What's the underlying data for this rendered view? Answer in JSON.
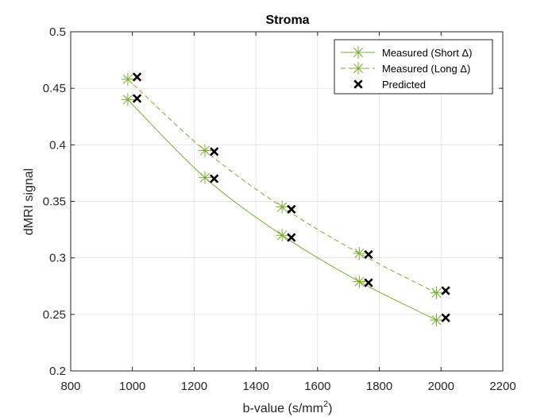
{
  "chart_data": {
    "type": "line",
    "title": "Stroma",
    "xlabel_text": "b-value (s/mm",
    "xlabel_sup": "2",
    "xlabel_close": ")",
    "ylabel": "dMRI signal",
    "xlim": [
      800,
      2200
    ],
    "ylim": [
      0.2,
      0.5
    ],
    "xticks": [
      "800",
      "1000",
      "1200",
      "1400",
      "1600",
      "1800",
      "2000",
      "2200"
    ],
    "yticks": [
      "0.2",
      "0.25",
      "0.3",
      "0.35",
      "0.4",
      "0.45",
      "0.5"
    ],
    "grid": true,
    "legend_position": "top-right",
    "series": [
      {
        "name": "Measured (Short Δ)",
        "marker": "asterisk",
        "line": "solid",
        "color": "#77AC30",
        "x": [
          985,
          1235,
          1485,
          1735,
          1985
        ],
        "y": [
          0.44,
          0.371,
          0.32,
          0.279,
          0.245
        ]
      },
      {
        "name": "Measured (Long Δ)",
        "marker": "asterisk",
        "line": "dashed",
        "color": "#77AC30",
        "x": [
          985,
          1235,
          1485,
          1735,
          1985
        ],
        "y": [
          0.458,
          0.395,
          0.345,
          0.304,
          0.269
        ]
      },
      {
        "name": "Predicted",
        "marker": "x",
        "line": "none",
        "color": "#000000",
        "x": [
          1015,
          1265,
          1515,
          1765,
          2015,
          1015,
          1265,
          1515,
          1765,
          2015
        ],
        "y": [
          0.46,
          0.394,
          0.343,
          0.303,
          0.271,
          0.441,
          0.37,
          0.318,
          0.278,
          0.247
        ]
      }
    ]
  }
}
